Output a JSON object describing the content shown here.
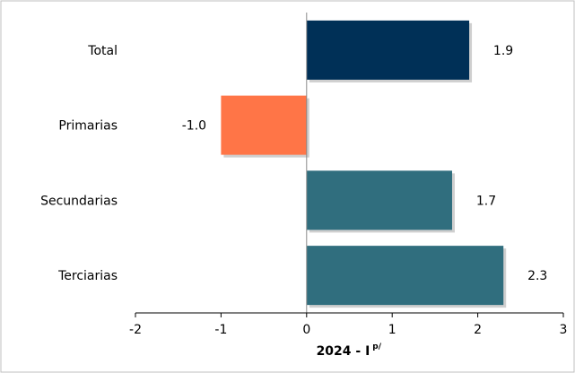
{
  "chart_data": {
    "type": "bar",
    "orientation": "horizontal",
    "categories": [
      "Total",
      "Primarias",
      "Secundarias",
      "Terciarias"
    ],
    "values": [
      1.9,
      -1.0,
      1.7,
      2.3
    ],
    "value_labels": [
      "1.9",
      "-1.0",
      "1.7",
      "2.3"
    ],
    "bar_colors": [
      "#003057",
      "#FF7547",
      "#306E7E",
      "#306E7E"
    ],
    "xlim": [
      -2,
      3
    ],
    "x_ticks": [
      "-2",
      "-1",
      "0",
      "1",
      "2",
      "3"
    ],
    "xlabel": "2024 - I",
    "xlabel_superscript": "p/",
    "grid": false
  }
}
